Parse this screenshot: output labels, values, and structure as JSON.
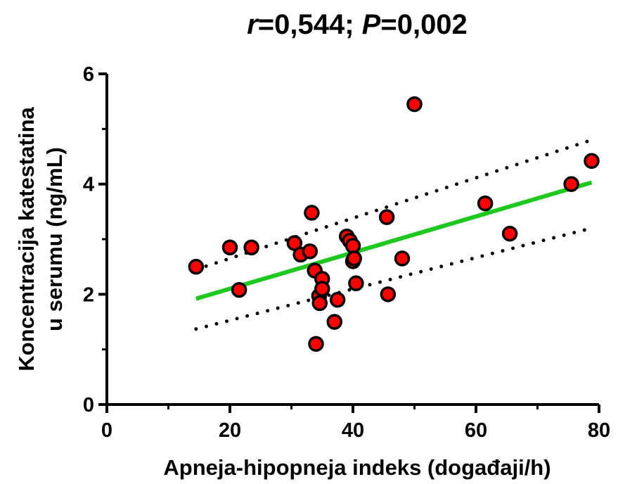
{
  "chart_data": {
    "type": "scatter",
    "title_r": "r",
    "title_r_value": "=0,544; ",
    "title_p": "P",
    "title_p_value": "=0,002",
    "xlabel": "Apneja-hipopneja indeks (događaji/h)",
    "ylabel_line1": "Koncentracija katestatina",
    "ylabel_line2": "u serumu (ng/mL)",
    "xlim": [
      0,
      80
    ],
    "ylim": [
      0,
      6
    ],
    "x_ticks": [
      "0",
      "20",
      "40",
      "60",
      "80"
    ],
    "x_tick_values": [
      0,
      20,
      40,
      60,
      80
    ],
    "y_ticks": [
      "0",
      "2",
      "4",
      "6"
    ],
    "y_tick_values": [
      0,
      2,
      4,
      6
    ],
    "y_minor_tick_values": [
      1,
      3,
      5
    ],
    "x_minor_tick_values": [
      10,
      30,
      50,
      70
    ],
    "grid": false,
    "points": [
      {
        "x": 14.5,
        "y": 2.5
      },
      {
        "x": 20.0,
        "y": 2.85
      },
      {
        "x": 21.5,
        "y": 2.08
      },
      {
        "x": 23.5,
        "y": 2.85
      },
      {
        "x": 30.5,
        "y": 2.93
      },
      {
        "x": 31.5,
        "y": 2.72
      },
      {
        "x": 33.0,
        "y": 2.78
      },
      {
        "x": 33.3,
        "y": 3.48
      },
      {
        "x": 33.8,
        "y": 2.43
      },
      {
        "x": 34.0,
        "y": 1.1
      },
      {
        "x": 34.5,
        "y": 1.97
      },
      {
        "x": 34.6,
        "y": 1.84
      },
      {
        "x": 35.0,
        "y": 2.28
      },
      {
        "x": 35.0,
        "y": 2.1
      },
      {
        "x": 37.0,
        "y": 1.5
      },
      {
        "x": 37.5,
        "y": 1.9
      },
      {
        "x": 39.0,
        "y": 3.05
      },
      {
        "x": 39.5,
        "y": 2.97
      },
      {
        "x": 40.0,
        "y": 2.88
      },
      {
        "x": 40.0,
        "y": 2.6
      },
      {
        "x": 40.2,
        "y": 2.65
      },
      {
        "x": 40.5,
        "y": 2.2
      },
      {
        "x": 45.5,
        "y": 3.4
      },
      {
        "x": 45.7,
        "y": 2.0
      },
      {
        "x": 48.0,
        "y": 2.65
      },
      {
        "x": 50.0,
        "y": 5.45
      },
      {
        "x": 61.5,
        "y": 3.65
      },
      {
        "x": 65.5,
        "y": 3.1
      },
      {
        "x": 75.5,
        "y": 4.0
      },
      {
        "x": 78.8,
        "y": 4.42
      }
    ],
    "regression_line": {
      "x": [
        14.5,
        78.8
      ],
      "y": [
        1.92,
        4.03
      ]
    },
    "ci_upper": {
      "x": [
        14.5,
        78.8
      ],
      "y": [
        2.45,
        4.8
      ]
    },
    "ci_lower": {
      "x": [
        14.5,
        78.8
      ],
      "y": [
        1.37,
        3.2
      ]
    },
    "colors": {
      "point_fill": "#ff0000",
      "point_stroke": "#000000",
      "regression": "#1ec81e",
      "ci": "#000000",
      "axis": "#000000"
    }
  }
}
